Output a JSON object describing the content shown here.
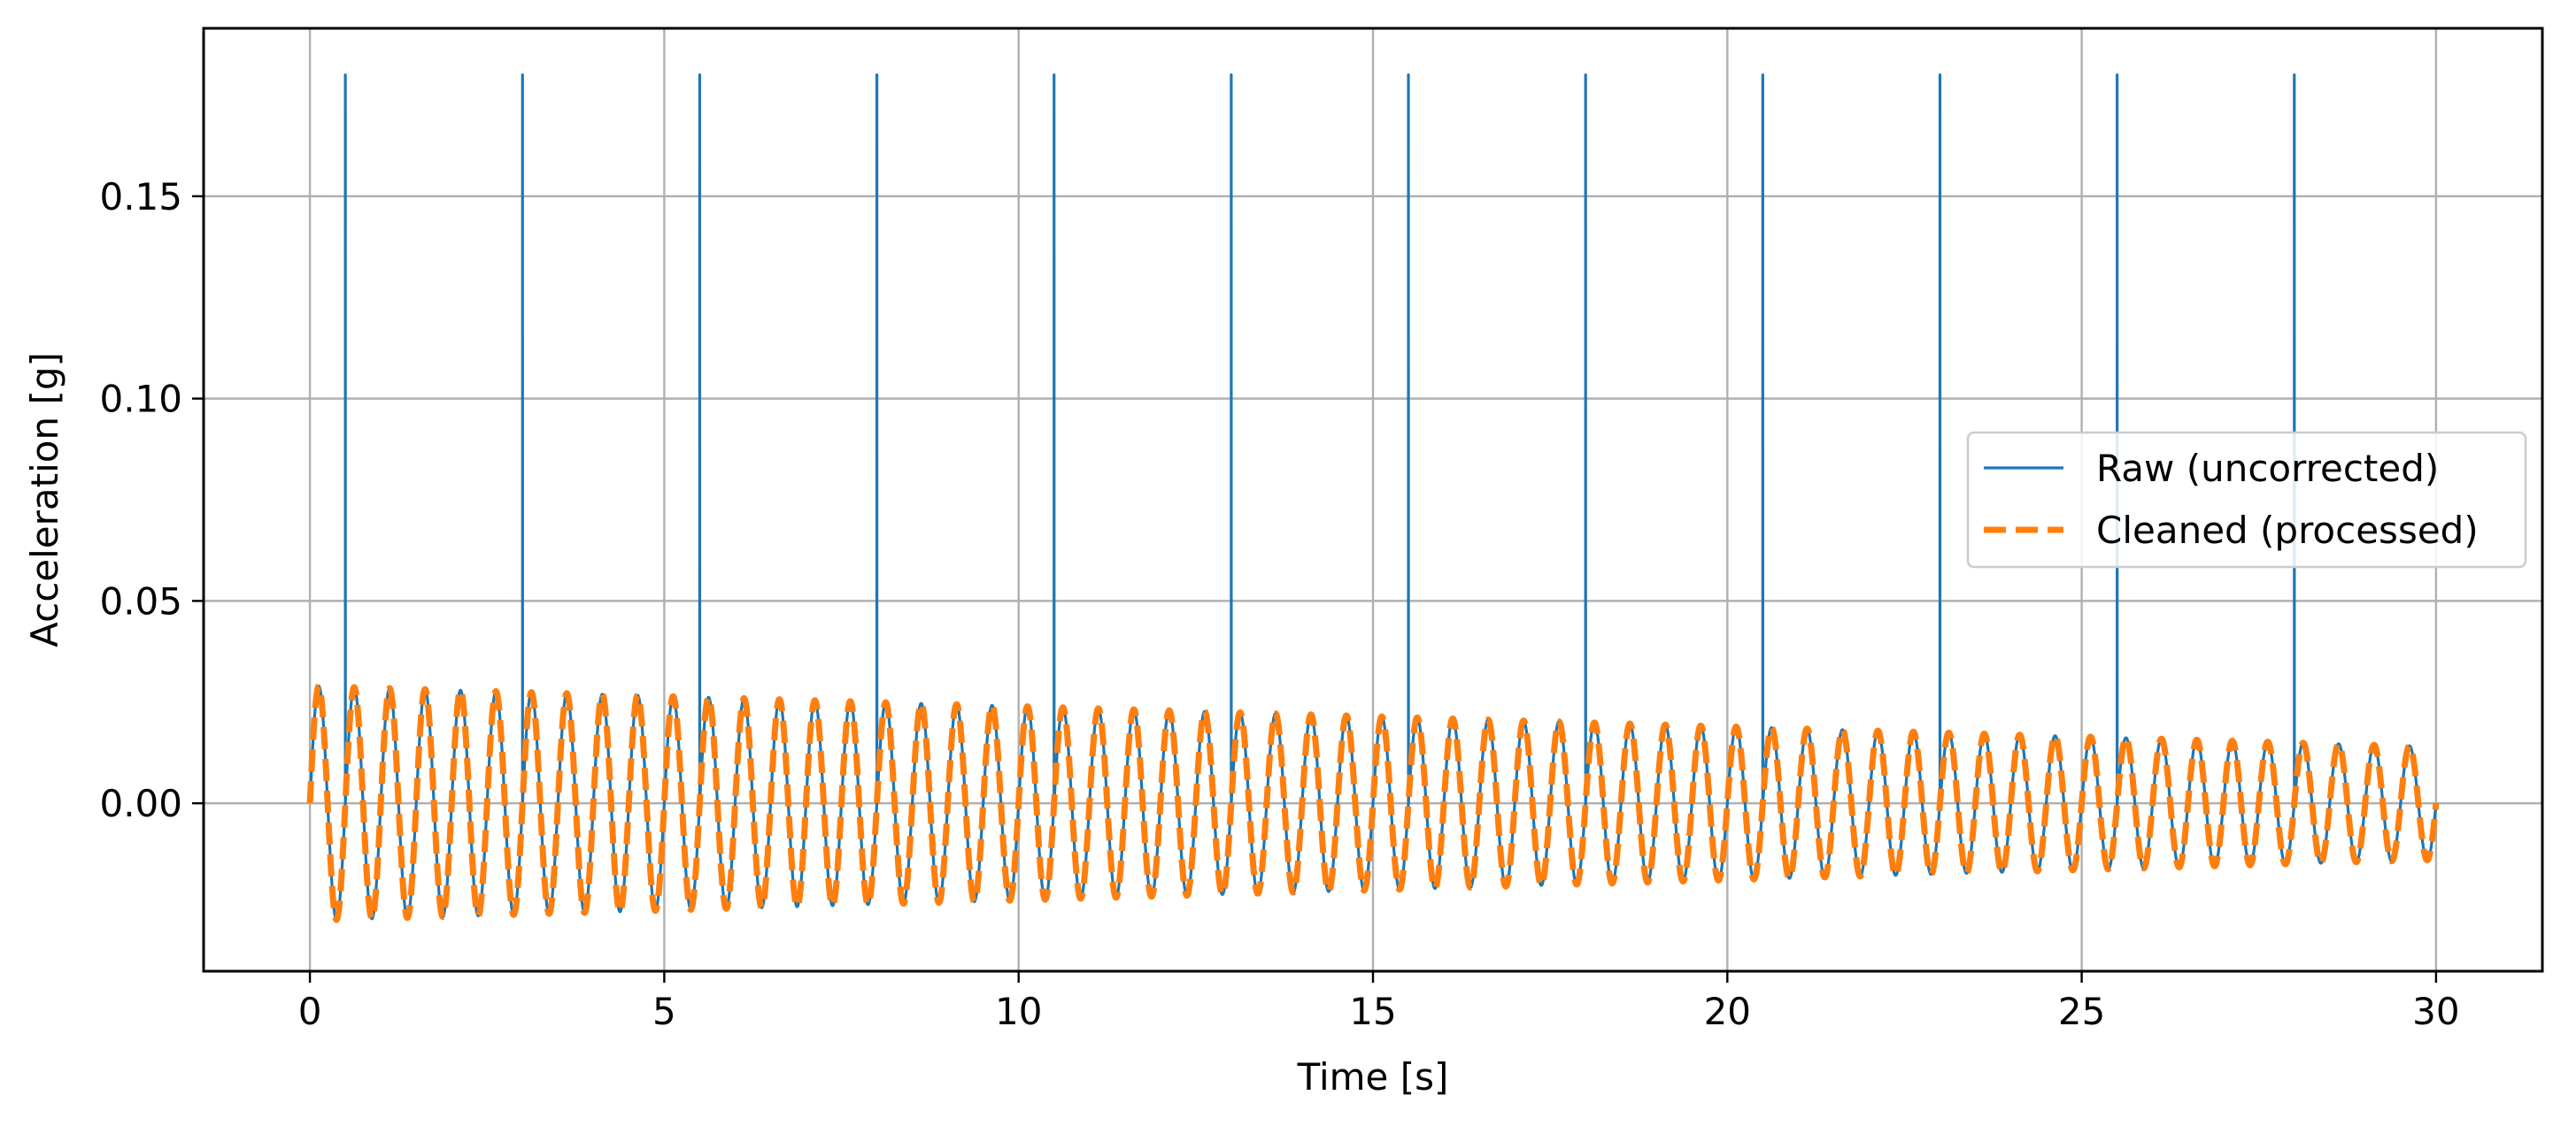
{
  "chart_data": {
    "type": "line",
    "title": "",
    "xlabel": "Time [s]",
    "ylabel": "Acceleration [g]",
    "xlim": [
      -1.5,
      31.5
    ],
    "ylim": [
      -0.0415,
      0.1915
    ],
    "x_ticks": [
      0,
      5,
      10,
      15,
      20,
      25,
      30
    ],
    "x_tick_labels": [
      "0",
      "5",
      "10",
      "15",
      "20",
      "25",
      "30"
    ],
    "y_ticks": [
      0.0,
      0.05,
      0.1,
      0.15
    ],
    "y_tick_labels": [
      "0.00",
      "0.05",
      "0.10",
      "0.15"
    ],
    "grid": true,
    "legend_position": "center-right",
    "signal": {
      "t_start": 0,
      "t_end": 30,
      "frequency_hz": 2.0,
      "amplitude_start": 0.029,
      "amplitude_end": 0.014
    },
    "series": [
      {
        "name": "Raw (uncorrected)",
        "color": "#1f77b4",
        "style": "solid",
        "spike_times": [
          0.5,
          3.0,
          5.5,
          8.0,
          10.5,
          13.0,
          15.5,
          18.0,
          20.5,
          23.0,
          25.5,
          28.0
        ],
        "spike_peak": 0.18
      },
      {
        "name": "Cleaned (processed)",
        "color": "#ff7f0e",
        "style": "dashed"
      }
    ]
  }
}
